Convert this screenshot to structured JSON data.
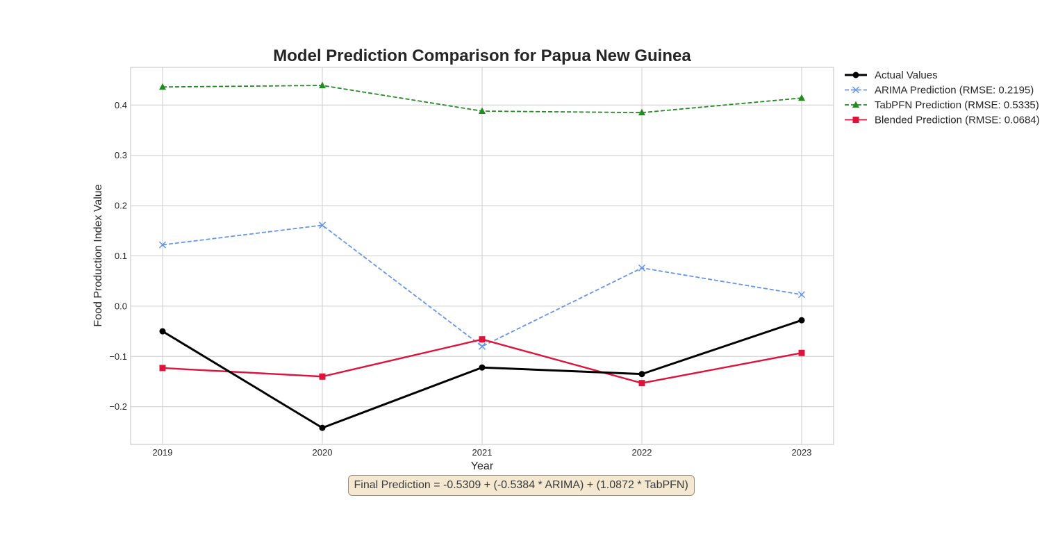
{
  "chart_data": {
    "type": "line",
    "title": "Model Prediction Comparison for Papua New Guinea",
    "xlabel": "Year",
    "ylabel": "Food Production Index Value",
    "categories": [
      "2019",
      "2020",
      "2021",
      "2022",
      "2023"
    ],
    "ylim": [
      -0.275,
      0.475
    ],
    "yticks": [
      -0.2,
      -0.1,
      0.0,
      0.1,
      0.2,
      0.3,
      0.4
    ],
    "ytick_labels": [
      "−0.2",
      "−0.1",
      "0.0",
      "0.1",
      "0.2",
      "0.3",
      "0.4"
    ],
    "grid": true,
    "legend_position": "outside-top-right",
    "series": [
      {
        "name": "Actual Values",
        "values": [
          -0.05,
          -0.242,
          -0.122,
          -0.135,
          -0.028
        ],
        "color": "#000000",
        "dash": "solid",
        "marker": "circle"
      },
      {
        "name": "ARIMA Prediction (RMSE: 0.2195)",
        "values": [
          0.122,
          0.161,
          -0.08,
          0.076,
          0.023
        ],
        "color": "#6495ED",
        "dash": "dashed",
        "marker": "x"
      },
      {
        "name": "TabPFN Prediction (RMSE: 0.5335)",
        "values": [
          0.436,
          0.439,
          0.388,
          0.385,
          0.414
        ],
        "color": "#228B22",
        "dash": "dashed",
        "marker": "triangle"
      },
      {
        "name": "Blended Prediction (RMSE: 0.0684)",
        "values": [
          -0.123,
          -0.14,
          -0.066,
          -0.153,
          -0.093
        ],
        "color": "#DC143C",
        "dash": "solid",
        "marker": "square"
      }
    ],
    "annotation": "Final Prediction = -0.5309 + (-0.5384 * ARIMA) + (1.0872 * TabPFN)"
  }
}
